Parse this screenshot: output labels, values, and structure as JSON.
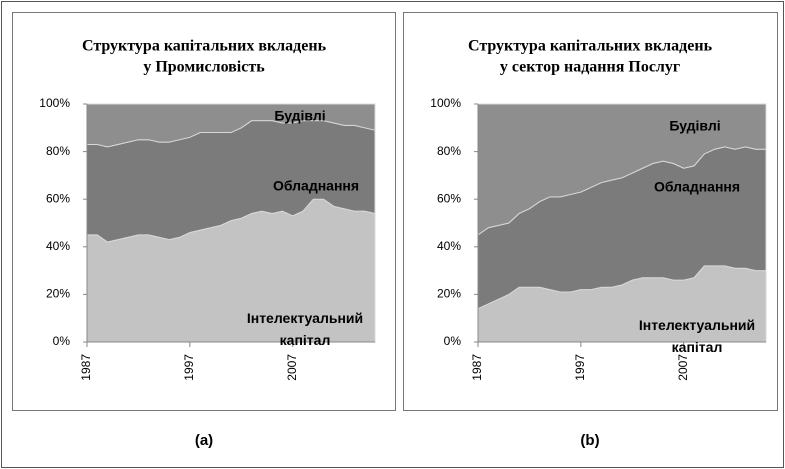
{
  "chart_data": [
    {
      "type": "area",
      "title": [
        "Структура капітальних вкладень",
        "у Промисловість"
      ],
      "caption": "(a)",
      "x": [
        1987,
        1988,
        1989,
        1990,
        1991,
        1992,
        1993,
        1994,
        1995,
        1996,
        1997,
        1998,
        1999,
        2000,
        2001,
        2002,
        2003,
        2004,
        2005,
        2006,
        2007,
        2008,
        2009,
        2010,
        2011,
        2012,
        2013,
        2014,
        2015
      ],
      "xlim": [
        1987,
        2015
      ],
      "xticks": [
        1987,
        1997,
        2007
      ],
      "ylim": [
        0,
        100
      ],
      "yticks": [
        {
          "value": 0,
          "label": "0%"
        },
        {
          "value": 20,
          "label": "20%"
        },
        {
          "value": 40,
          "label": "40%"
        },
        {
          "value": 60,
          "label": "60%"
        },
        {
          "value": 80,
          "label": "80%"
        },
        {
          "value": 100,
          "label": "100%"
        }
      ],
      "series": [
        {
          "name": "Інтелектуальний капітал",
          "color": "#c3c3c3",
          "values": [
            45,
            45,
            42,
            43,
            44,
            45,
            45,
            44,
            43,
            44,
            46,
            47,
            48,
            49,
            51,
            52,
            54,
            55,
            54,
            55,
            53,
            55,
            60,
            60,
            57,
            56,
            55,
            55,
            54
          ]
        },
        {
          "name": "Обладнання",
          "color": "#7b7b7b",
          "values": [
            38,
            38,
            40,
            40,
            40,
            40,
            40,
            40,
            41,
            41,
            40,
            41,
            40,
            39,
            37,
            38,
            39,
            38,
            39,
            37,
            39,
            38,
            33,
            33,
            35,
            35,
            36,
            35,
            35
          ]
        },
        {
          "name": "Будівлі",
          "color": "#8e8e8e",
          "values": [
            17,
            17,
            18,
            17,
            16,
            15,
            15,
            16,
            16,
            15,
            14,
            12,
            12,
            12,
            12,
            10,
            7,
            7,
            7,
            8,
            8,
            7,
            7,
            7,
            8,
            9,
            9,
            10,
            11
          ]
        }
      ]
    },
    {
      "type": "area",
      "title": [
        "Структура капітальних вкладень",
        "у сектор надання Послуг"
      ],
      "caption": "(b)",
      "x": [
        1987,
        1988,
        1989,
        1990,
        1991,
        1992,
        1993,
        1994,
        1995,
        1996,
        1997,
        1998,
        1999,
        2000,
        2001,
        2002,
        2003,
        2004,
        2005,
        2006,
        2007,
        2008,
        2009,
        2010,
        2011,
        2012,
        2013,
        2014,
        2015
      ],
      "xlim": [
        1987,
        2015
      ],
      "xticks": [
        1987,
        1997,
        2007
      ],
      "ylim": [
        0,
        100
      ],
      "yticks": [
        {
          "value": 0,
          "label": "0%"
        },
        {
          "value": 20,
          "label": "20%"
        },
        {
          "value": 40,
          "label": "40%"
        },
        {
          "value": 60,
          "label": "60%"
        },
        {
          "value": 80,
          "label": "80%"
        },
        {
          "value": 100,
          "label": "100%"
        }
      ],
      "series": [
        {
          "name": "Інтелектуальний капітал",
          "color": "#c3c3c3",
          "values": [
            14,
            16,
            18,
            20,
            23,
            23,
            23,
            22,
            21,
            21,
            22,
            22,
            23,
            23,
            24,
            26,
            27,
            27,
            27,
            26,
            26,
            27,
            32,
            32,
            32,
            31,
            31,
            30,
            30
          ]
        },
        {
          "name": "Обладнання",
          "color": "#7b7b7b",
          "values": [
            31,
            32,
            31,
            30,
            31,
            33,
            36,
            39,
            40,
            41,
            41,
            43,
            44,
            45,
            45,
            45,
            46,
            48,
            49,
            49,
            47,
            47,
            47,
            49,
            50,
            50,
            51,
            51,
            51
          ]
        },
        {
          "name": "Будівлі",
          "color": "#8e8e8e",
          "values": [
            55,
            52,
            51,
            50,
            46,
            44,
            41,
            39,
            39,
            38,
            37,
            35,
            33,
            32,
            31,
            29,
            27,
            25,
            24,
            25,
            27,
            26,
            21,
            19,
            18,
            19,
            18,
            19,
            19
          ]
        }
      ]
    }
  ]
}
